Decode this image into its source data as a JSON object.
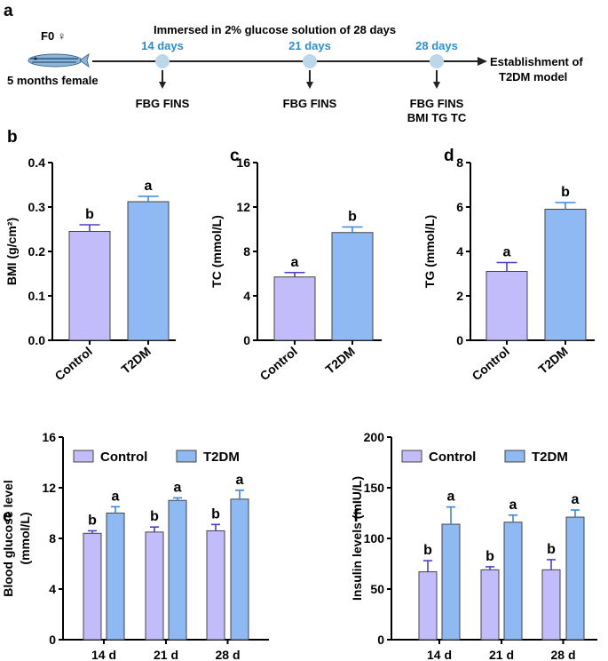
{
  "colors": {
    "control": "#c3bcfb",
    "t2dm": "#8fb9f3",
    "control_err": "#4b3fc7",
    "t2dm_err": "#3a86e0",
    "day": "#2a8fd0",
    "node": "#bdd7ea"
  },
  "timeline": {
    "letter": "a",
    "fish_label": "F0 ♀",
    "fish_desc": "5 months female",
    "title": "Immersed in 2% glucose solution of 28 days",
    "days": [
      "14 days",
      "21 days",
      "28 days"
    ],
    "measures": [
      [
        "FBG FINS"
      ],
      [
        "FBG FINS"
      ],
      [
        "FBG FINS",
        "BMI TG TC"
      ]
    ],
    "end_label": [
      "Establishment of",
      "T2DM model"
    ]
  },
  "chart_data": [
    {
      "id": "b",
      "letter": "b",
      "type": "bar",
      "categories": [
        "Control",
        "T2DM"
      ],
      "values": [
        0.245,
        0.312
      ],
      "errors": [
        0.015,
        0.012
      ],
      "sig": [
        "b",
        "a"
      ],
      "ylabel": "BMI (g/cm²)",
      "ylim": [
        0,
        0.4
      ],
      "yticks": [
        "0.0",
        "0.1",
        "0.2",
        "0.3",
        "0.4"
      ]
    },
    {
      "id": "c",
      "letter": "c",
      "type": "bar",
      "categories": [
        "Control",
        "T2DM"
      ],
      "values": [
        5.7,
        9.7
      ],
      "errors": [
        0.4,
        0.5
      ],
      "sig": [
        "a",
        "b"
      ],
      "ylabel": "TC (mmol/L)",
      "ylim": [
        0,
        16
      ],
      "yticks": [
        "0",
        "4",
        "8",
        "12",
        "16"
      ]
    },
    {
      "id": "d",
      "letter": "d",
      "type": "bar",
      "categories": [
        "Control",
        "T2DM"
      ],
      "values": [
        3.1,
        5.9
      ],
      "errors": [
        0.4,
        0.3
      ],
      "sig": [
        "a",
        "b"
      ],
      "ylabel": "TG (mmol/L)",
      "ylim": [
        0,
        8
      ],
      "yticks": [
        "0",
        "2",
        "4",
        "6",
        "8"
      ]
    },
    {
      "id": "e",
      "letter": "e",
      "type": "bar",
      "categories": [
        "14 d",
        "21 d",
        "28 d"
      ],
      "series": [
        {
          "name": "Control",
          "values": [
            8.4,
            8.5,
            8.6
          ],
          "errors": [
            0.2,
            0.4,
            0.5
          ],
          "sig": [
            "b",
            "b",
            "b"
          ]
        },
        {
          "name": "T2DM",
          "values": [
            10.0,
            11.0,
            11.1
          ],
          "errors": [
            0.5,
            0.2,
            0.7
          ],
          "sig": [
            "a",
            "a",
            "a"
          ]
        }
      ],
      "ylabel": [
        "Blood glucose level",
        "(mmol/L)"
      ],
      "ylim": [
        0,
        16
      ],
      "yticks": [
        "0",
        "4",
        "8",
        "12",
        "16"
      ],
      "legend": "top"
    },
    {
      "id": "f",
      "letter": "f",
      "type": "bar",
      "categories": [
        "14 d",
        "21 d",
        "28 d"
      ],
      "series": [
        {
          "name": "Control",
          "values": [
            67,
            69,
            69
          ],
          "errors": [
            11,
            3,
            10
          ],
          "sig": [
            "b",
            "b",
            "b"
          ]
        },
        {
          "name": "T2DM",
          "values": [
            114,
            116,
            121
          ],
          "errors": [
            17,
            7,
            7
          ],
          "sig": [
            "a",
            "a",
            "a"
          ]
        }
      ],
      "ylabel": "Insulin levels (mIU/L)",
      "ylim": [
        0,
        200
      ],
      "yticks": [
        "0",
        "50",
        "100",
        "150",
        "200"
      ],
      "legend": "top"
    }
  ]
}
